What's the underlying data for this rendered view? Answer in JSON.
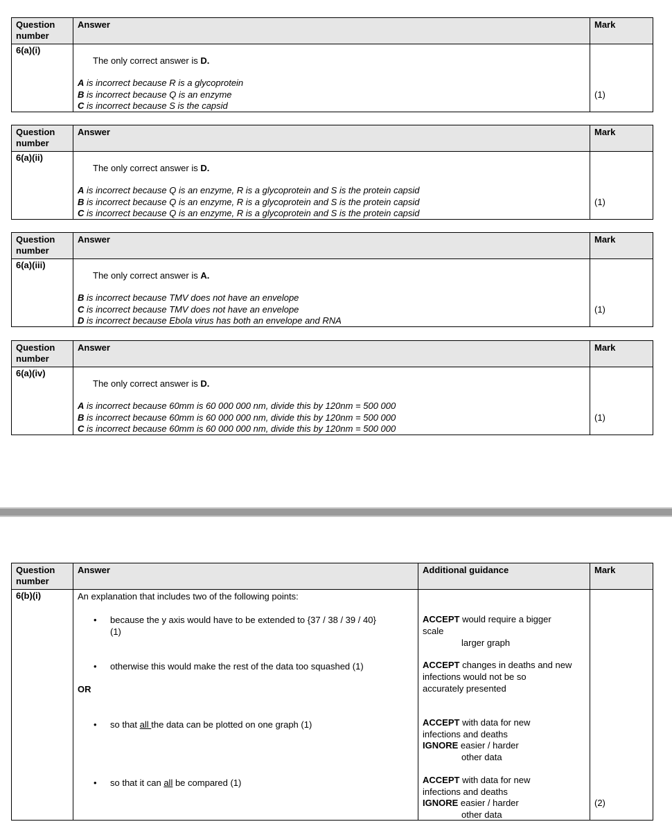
{
  "headers": {
    "question": "Question",
    "question2": "number",
    "answer": "Answer",
    "guidance": "Additional guidance",
    "mark": "Mark"
  },
  "mcq": [
    {
      "qnum": "6(a)(i)",
      "intro": "The only correct answer is ",
      "correct": "D.",
      "lines": [
        {
          "letter": "A",
          "text": " is incorrect because R is a glycoprotein"
        },
        {
          "letter": "B",
          "text": " is incorrect because Q is an enzyme"
        },
        {
          "letter": "C",
          "text": " is incorrect because S is the capsid"
        }
      ],
      "mark": "(1)"
    },
    {
      "qnum": "6(a)(ii)",
      "intro": "The only correct answer is ",
      "correct": "D.",
      "lines": [
        {
          "letter": "A",
          "text": " is incorrect because Q is an enzyme, R is a glycoprotein and S is the protein capsid"
        },
        {
          "letter": "B",
          "text": " is incorrect because Q is an enzyme, R is a glycoprotein and S is the protein capsid"
        },
        {
          "letter": "C",
          "text": " is incorrect because Q is an enzyme, R is a glycoprotein and S is the protein capsid"
        }
      ],
      "mark": "(1)"
    },
    {
      "qnum": "6(a)(iii)",
      "intro": "The only correct answer is ",
      "correct": "A.",
      "lines": [
        {
          "letter": "B",
          "text": " is incorrect because TMV does not have an envelope"
        },
        {
          "letter": "C",
          "text": " is incorrect because TMV does not have an envelope"
        },
        {
          "letter": "D",
          "text": " is incorrect because Ebola virus has both an envelope and RNA"
        }
      ],
      "mark": "(1)"
    },
    {
      "qnum": "6(a)(iv)",
      "intro": "The only correct answer is ",
      "correct": "D.",
      "lines": [
        {
          "letter": "A",
          "text": " is incorrect because 60mm is 60 000 000 nm, divide this by 120nm = 500 000"
        },
        {
          "letter": "B",
          "text": " is incorrect because 60mm is 60 000 000 nm, divide this by 120nm = 500 000"
        },
        {
          "letter": "C",
          "text": " is incorrect because 60mm is 60 000 000 nm, divide this by 120nm = 500 000"
        }
      ],
      "mark": "(1)"
    }
  ],
  "q6bi": {
    "qnum": "6(b)(i)",
    "intro": "An explanation that includes two of the following points:",
    "bullet1": "because the y axis would have to be extended to {37 / 38 / 39 / 40}",
    "bullet1_mark": "(1)",
    "bullet2": "otherwise this would make the rest of the data too squashed (1)",
    "or": "OR",
    "bullet3_a": "so that ",
    "bullet3_u": "all ",
    "bullet3_b": "the data can be plotted on one graph  (1)",
    "bullet4_a": "so that it can ",
    "bullet4_u": "all",
    "bullet4_b": " be compared  (1)",
    "g1_kw": "ACCEPT",
    "g1_a": " would require a bigger",
    "g1_b": "scale",
    "g1_c": "larger graph",
    "g2_kw": "ACCEPT",
    "g2_a": " changes in deaths and new",
    "g2_b": "infections would not be so",
    "g2_c": "accurately presented",
    "g3_kw": "ACCEPT",
    "g3_a": " with data for new",
    "g3_b": "infections and deaths",
    "g3_kw2": "IGNORE",
    "g3_c": " easier / harder",
    "g3_d": "other data",
    "g4_kw": "ACCEPT",
    "g4_a": " with data for new",
    "g4_b": "infections and deaths",
    "g4_kw2": "IGNORE",
    "g4_c": " easier / harder",
    "g4_d": "other data",
    "mark": "(2)"
  }
}
